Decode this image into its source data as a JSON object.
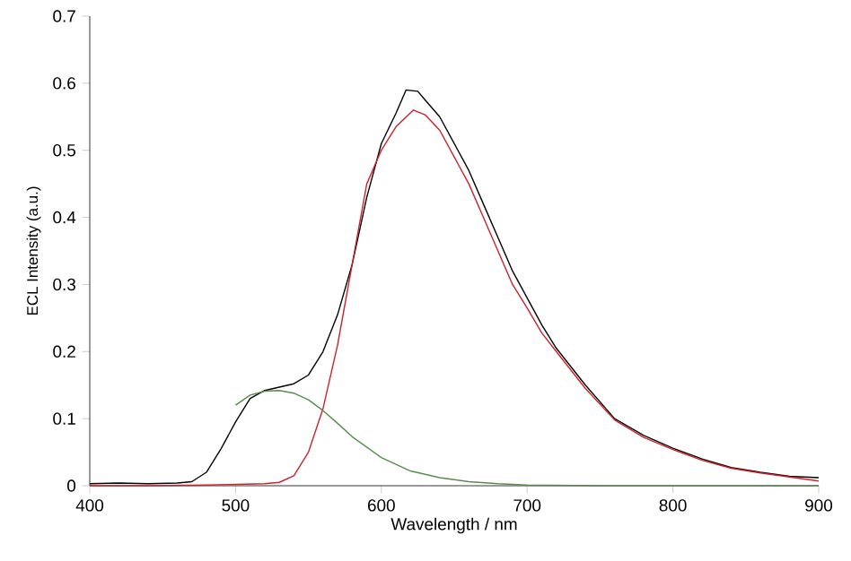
{
  "chart_data": {
    "type": "line",
    "xlabel": "Wavelength / nm",
    "ylabel": "ECL Intensity (a.u.)",
    "xlim": [
      400,
      900
    ],
    "ylim": [
      0,
      0.7
    ],
    "xticks": [
      400,
      500,
      600,
      700,
      800,
      900
    ],
    "yticks": [
      0,
      0.1,
      0.2,
      0.3,
      0.4,
      0.5,
      0.6,
      0.7
    ],
    "grid": false,
    "marker": "none",
    "line_style": "solid",
    "series": [
      {
        "color": "#000000",
        "x": [
          400,
          420,
          440,
          460,
          470,
          480,
          490,
          500,
          510,
          520,
          530,
          540,
          550,
          560,
          570,
          580,
          590,
          600,
          610,
          617,
          625,
          630,
          640,
          650,
          660,
          670,
          680,
          690,
          700,
          710,
          720,
          740,
          760,
          780,
          800,
          820,
          840,
          860,
          880,
          900
        ],
        "values": [
          0.003,
          0.004,
          0.003,
          0.004,
          0.006,
          0.02,
          0.055,
          0.095,
          0.13,
          0.142,
          0.147,
          0.152,
          0.165,
          0.2,
          0.255,
          0.33,
          0.43,
          0.51,
          0.555,
          0.59,
          0.588,
          0.575,
          0.55,
          0.51,
          0.47,
          0.42,
          0.37,
          0.32,
          0.28,
          0.24,
          0.205,
          0.15,
          0.1,
          0.075,
          0.056,
          0.04,
          0.027,
          0.02,
          0.014,
          0.012
        ]
      },
      {
        "color": "#d0202a",
        "x": [
          400,
          440,
          480,
          520,
          530,
          540,
          550,
          560,
          570,
          580,
          590,
          600,
          610,
          622,
          630,
          640,
          650,
          660,
          670,
          680,
          690,
          700,
          710,
          720,
          740,
          760,
          780,
          800,
          820,
          840,
          860,
          880,
          900
        ],
        "values": [
          0.0,
          0.0,
          0.001,
          0.003,
          0.005,
          0.015,
          0.05,
          0.115,
          0.21,
          0.33,
          0.45,
          0.5,
          0.535,
          0.56,
          0.553,
          0.53,
          0.49,
          0.45,
          0.4,
          0.35,
          0.3,
          0.265,
          0.228,
          0.2,
          0.145,
          0.098,
          0.072,
          0.054,
          0.038,
          0.026,
          0.019,
          0.013,
          0.007
        ]
      },
      {
        "color": "#5a8a50",
        "x": [
          500,
          510,
          520,
          530,
          540,
          550,
          560,
          570,
          580,
          600,
          620,
          640,
          660,
          680,
          700,
          750,
          800,
          900
        ],
        "values": [
          0.12,
          0.135,
          0.141,
          0.142,
          0.138,
          0.128,
          0.112,
          0.093,
          0.073,
          0.042,
          0.022,
          0.012,
          0.006,
          0.003,
          0.001,
          0.0,
          0.0,
          0.0
        ]
      }
    ]
  }
}
